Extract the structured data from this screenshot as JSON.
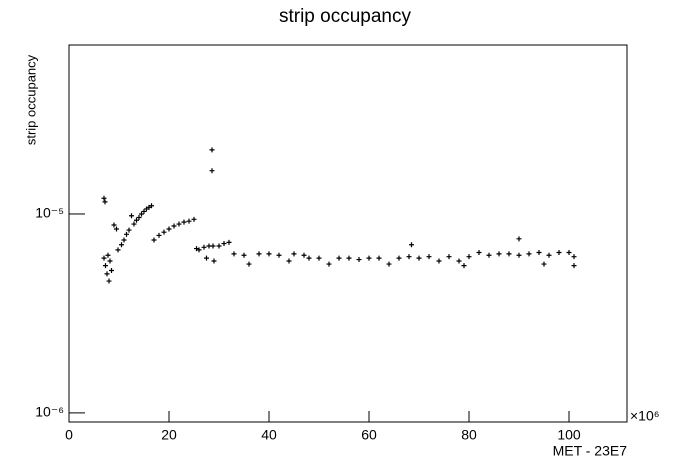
{
  "chart_data": {
    "type": "scatter",
    "title": "strip occupancy",
    "x_label": "MET - 23E7",
    "y_label": "strip occupancy",
    "x_multiplier": "×10⁶",
    "log_y": true,
    "color": "#000000",
    "marker": "+",
    "xlim": [
      0,
      111.6
    ],
    "ylim": [
      9e-07,
      7.07e-05
    ],
    "xticks": [
      0,
      20,
      40,
      60,
      80,
      100
    ],
    "yticks": [
      {
        "value": 1e-06,
        "label": "10⁻⁶"
      },
      {
        "value": 1e-05,
        "label": "10⁻⁵"
      }
    ],
    "x": [
      7.0,
      7.2,
      7.0,
      7.3,
      7.6,
      7.8,
      8.0,
      8.2,
      8.5,
      9.0,
      9.5,
      9.8,
      10.5,
      11.0,
      11.5,
      12.0,
      12.5,
      13.0,
      13.5,
      14.0,
      14.5,
      15.0,
      15.5,
      16.0,
      16.5,
      17.0,
      18.0,
      19.0,
      20.0,
      21.0,
      22.0,
      23.0,
      24.0,
      25.0,
      25.5,
      26.0,
      27.0,
      27.5,
      28.0,
      28.6,
      28.6,
      28.8,
      29.0,
      30.0,
      31.0,
      32.0,
      33,
      35,
      36,
      38,
      40,
      42,
      44,
      45,
      47,
      48,
      50,
      52,
      54,
      56,
      58,
      60,
      62,
      64,
      66,
      68,
      68.5,
      70,
      72,
      74,
      76,
      78,
      79,
      80,
      82,
      84,
      86,
      88,
      90,
      90,
      92,
      94,
      95,
      96,
      98,
      100,
      101,
      101
    ],
    "values": [
      1.2e-05,
      1.15e-05,
      6e-06,
      5.5e-06,
      5e-06,
      6.2e-06,
      4.6e-06,
      5.8e-06,
      5.2e-06,
      8.8e-06,
      8.4e-06,
      6.6e-06,
      7e-06,
      7.4e-06,
      7.9e-06,
      8.3e-06,
      9.8e-06,
      8.9e-06,
      9.3e-06,
      9.6e-06,
      1e-05,
      1.03e-05,
      1.06e-05,
      1.08e-05,
      1.1e-05,
      7.4e-06,
      7.8e-06,
      8.1e-06,
      8.4e-06,
      8.7e-06,
      8.9e-06,
      9.1e-06,
      9.2e-06,
      9.4e-06,
      6.7e-06,
      6.6e-06,
      6.8e-06,
      6e-06,
      6.9e-06,
      2.1e-05,
      1.65e-05,
      6.9e-06,
      5.8e-06,
      6.9e-06,
      7.1e-06,
      7.2e-06,
      6.3e-06,
      6.2e-06,
      5.6e-06,
      6.3e-06,
      6.3e-06,
      6.2e-06,
      5.8e-06,
      6.3e-06,
      6.2e-06,
      6e-06,
      6e-06,
      5.6e-06,
      6e-06,
      6e-06,
      5.9e-06,
      6e-06,
      6e-06,
      5.6e-06,
      6e-06,
      6.1e-06,
      7e-06,
      6e-06,
      6.1e-06,
      5.8e-06,
      6.1e-06,
      5.8e-06,
      5.5e-06,
      6.1e-06,
      6.4e-06,
      6.2e-06,
      6.3e-06,
      6.3e-06,
      7.5e-06,
      6.2e-06,
      6.3e-06,
      6.4e-06,
      5.6e-06,
      6.2e-06,
      6.4e-06,
      6.4e-06,
      5.5e-06,
      6.1e-06
    ]
  }
}
